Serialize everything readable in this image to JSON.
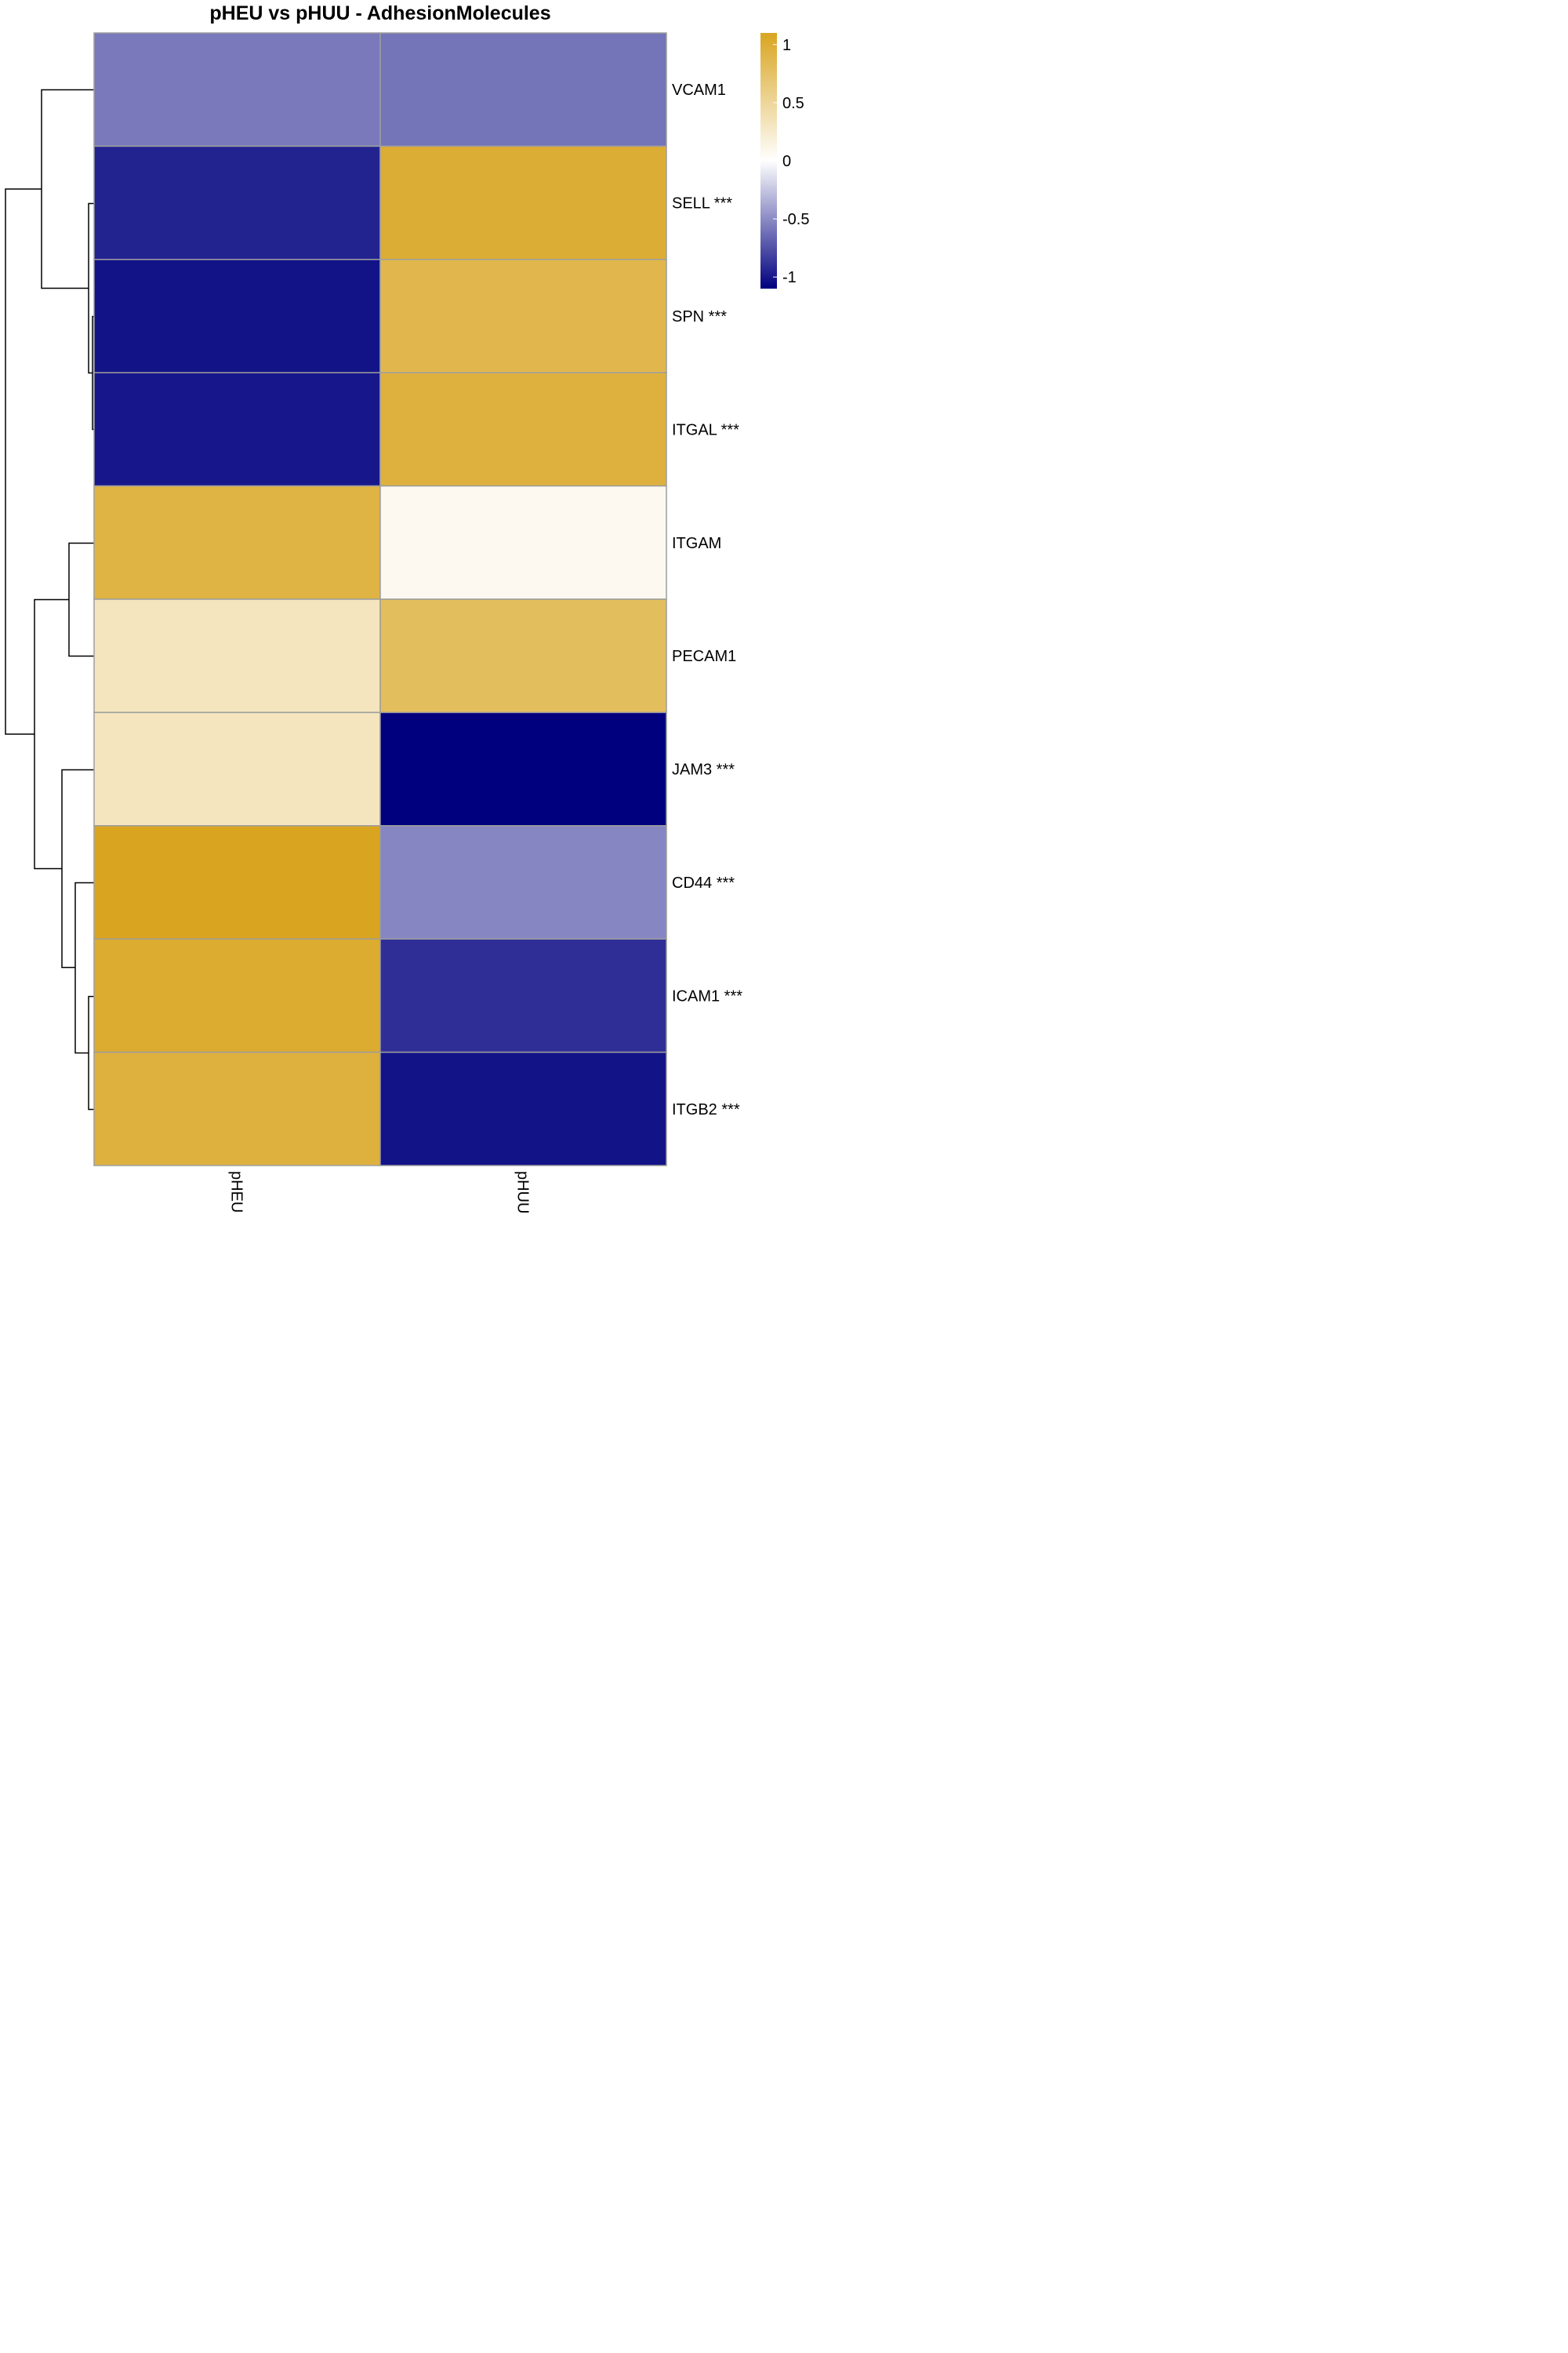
{
  "chart_data": {
    "type": "heatmap",
    "title": "pHEU vs pHUU - AdhesionMolecules",
    "columns": [
      "pHEU",
      "pHUU"
    ],
    "rows": [
      "VCAM1",
      "SELL ***",
      "SPN ***",
      "ITGAL ***",
      "ITGAM",
      "PECAM1",
      "JAM3 ***",
      "CD44 ***",
      "ICAM1 ***",
      "ITGB2 ***"
    ],
    "values": [
      [
        -0.58,
        -0.6
      ],
      [
        -0.95,
        1.0
      ],
      [
        -1.02,
        0.88
      ],
      [
        -1.0,
        0.95
      ],
      [
        0.92,
        0.07
      ],
      [
        0.32,
        0.8
      ],
      [
        0.32,
        -1.1
      ],
      [
        1.1,
        -0.52
      ],
      [
        1.02,
        -0.9
      ],
      [
        0.95,
        -1.02
      ]
    ],
    "legend": {
      "ticks": [
        1,
        0.5,
        0,
        -0.5,
        -1
      ],
      "tick_labels": [
        "1",
        "0.5",
        "0",
        "-0.5",
        "-1"
      ],
      "range": [
        -1.1,
        1.1
      ],
      "high_color": "#D9A520",
      "mid_color": "#FFFFFF",
      "low_color": "#00007F",
      "placement": "top-right"
    },
    "row_dendrogram": true,
    "cell_border_color": "#9E9E9E"
  }
}
